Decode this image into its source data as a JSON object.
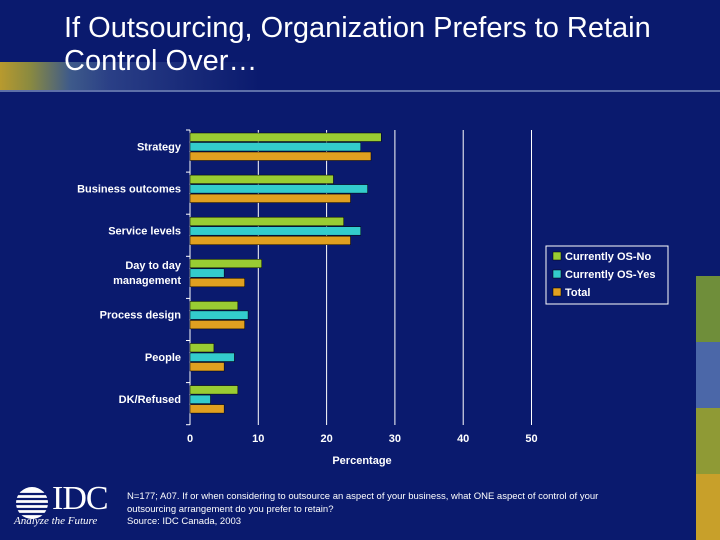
{
  "slide": {
    "title": "If Outsourcing, Organization Prefers to Retain Control Over…",
    "footnote_lines": [
      "N=177; A07. If or when considering to outsource an aspect of your business, what ONE aspect of control of your",
      "outsourcing arrangement do you prefer to retain?",
      "Source: IDC Canada, 2003"
    ],
    "logo": {
      "text": "IDC",
      "tagline": "Analyze the Future"
    },
    "colors": {
      "background": "#0a1a6e",
      "series_no": "#99cc33",
      "series_yes": "#33cccc",
      "series_total": "#e0a020",
      "side_blocks": [
        "#6f8e3a",
        "#4b67a8",
        "#8f9a35",
        "#2e8a80",
        "#c8a02a"
      ]
    }
  },
  "chart_data": {
    "type": "bar",
    "orientation": "horizontal",
    "title": "",
    "xlabel": "Percentage",
    "ylabel": "",
    "xlim": [
      0,
      50
    ],
    "xticks": [
      0,
      10,
      20,
      30,
      40,
      50
    ],
    "categories": [
      "Strategy",
      "Business outcomes",
      "Service levels",
      "Day to day management",
      "Process design",
      "People",
      "DK/Refused"
    ],
    "category_lines": [
      [
        "Strategy"
      ],
      [
        "Business outcomes"
      ],
      [
        "Service levels"
      ],
      [
        "Day to day",
        "management"
      ],
      [
        "Process design"
      ],
      [
        "People"
      ],
      [
        "DK/Refused"
      ]
    ],
    "series": [
      {
        "name": "Currently OS-No",
        "color": "#99cc33",
        "values": [
          28,
          21,
          22.5,
          10.5,
          7,
          3.5,
          7
        ]
      },
      {
        "name": "Currently OS-Yes",
        "color": "#33cccc",
        "values": [
          25,
          26,
          25,
          5,
          8.5,
          6.5,
          3
        ]
      },
      {
        "name": "Total",
        "color": "#e0a020",
        "values": [
          26.5,
          23.5,
          23.5,
          8,
          8,
          5,
          5
        ]
      }
    ],
    "grid": true,
    "legend_position": "right"
  }
}
